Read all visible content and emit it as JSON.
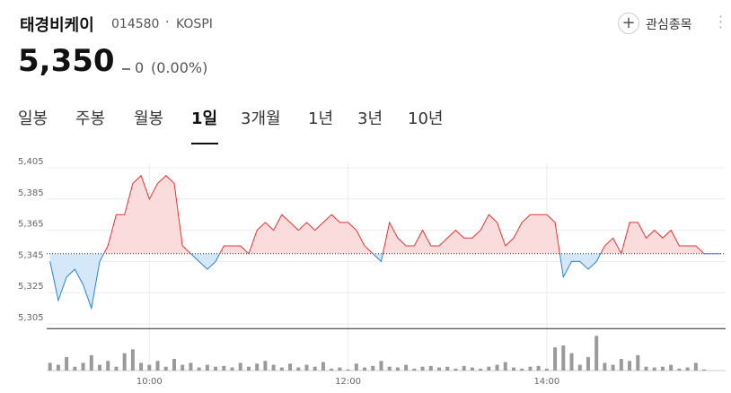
{
  "header": {
    "title": "태경비케이",
    "code": "014580",
    "market": "KOSPI",
    "watch_button": "관심종목",
    "price": "5,350",
    "change": "0",
    "change_pct": "(0.00%)"
  },
  "tabs": [
    "일봉",
    "주봉",
    "월봉",
    "1일",
    "3개월",
    "1년",
    "3년",
    "10년"
  ],
  "selected_tab": 3,
  "chart_data": {
    "type": "line",
    "x": [
      "09:00",
      "09:05",
      "09:10",
      "09:15",
      "09:20",
      "09:25",
      "09:30",
      "09:35",
      "09:40",
      "09:45",
      "09:50",
      "09:55",
      "10:00",
      "10:05",
      "10:10",
      "10:15",
      "10:20",
      "10:25",
      "10:30",
      "10:35",
      "10:40",
      "10:45",
      "10:50",
      "10:55",
      "11:00",
      "11:05",
      "11:10",
      "11:15",
      "11:20",
      "11:25",
      "11:30",
      "11:35",
      "11:40",
      "11:45",
      "11:50",
      "11:55",
      "12:00",
      "12:05",
      "12:10",
      "12:15",
      "12:20",
      "12:25",
      "12:30",
      "12:35",
      "12:40",
      "12:45",
      "12:50",
      "12:55",
      "13:00",
      "13:05",
      "13:10",
      "13:15",
      "13:20",
      "13:25",
      "13:30",
      "13:35",
      "13:40",
      "13:45",
      "13:50",
      "13:55",
      "14:00",
      "14:05",
      "14:10",
      "14:15",
      "14:20",
      "14:25",
      "14:30",
      "14:35",
      "14:40",
      "14:45",
      "14:50",
      "14:55",
      "15:00",
      "15:05",
      "15:10",
      "15:15",
      "15:20",
      "15:25",
      "15:30",
      "15:35",
      "15:40",
      "15:45"
    ],
    "values": [
      5345,
      5320,
      5335,
      5340,
      5330,
      5315,
      5345,
      5355,
      5375,
      5375,
      5395,
      5400,
      5385,
      5395,
      5400,
      5395,
      5355,
      5350,
      5345,
      5340,
      5345,
      5355,
      5355,
      5355,
      5350,
      5365,
      5370,
      5365,
      5375,
      5370,
      5365,
      5370,
      5365,
      5370,
      5375,
      5370,
      5370,
      5365,
      5355,
      5350,
      5345,
      5370,
      5360,
      5355,
      5355,
      5365,
      5355,
      5355,
      5360,
      5365,
      5360,
      5360,
      5365,
      5375,
      5370,
      5355,
      5360,
      5370,
      5375,
      5375,
      5375,
      5370,
      5335,
      5345,
      5345,
      5340,
      5345,
      5355,
      5360,
      5350,
      5370,
      5370,
      5360,
      5365,
      5360,
      5365,
      5355,
      5355,
      5355,
      5350,
      5350,
      5350
    ],
    "volumes": [
      20,
      15,
      35,
      10,
      20,
      40,
      15,
      25,
      10,
      45,
      55,
      20,
      15,
      25,
      10,
      30,
      15,
      20,
      8,
      15,
      10,
      12,
      8,
      20,
      10,
      18,
      25,
      15,
      8,
      18,
      8,
      15,
      10,
      22,
      5,
      8,
      3,
      18,
      8,
      12,
      25,
      10,
      8,
      15,
      5,
      10,
      12,
      8,
      10,
      5,
      12,
      8,
      5,
      10,
      15,
      22,
      8,
      5,
      10,
      12,
      5,
      60,
      65,
      45,
      15,
      35,
      90,
      20,
      15,
      30,
      25,
      40,
      10,
      8,
      10,
      15,
      5,
      8,
      20,
      3,
      0,
      0
    ],
    "volume_lim": [
      0,
      100
    ],
    "baseline": 5350,
    "xlim": [
      "08:58",
      "15:48"
    ],
    "xticks": [
      "10:00",
      "12:00",
      "14:00"
    ],
    "ylim": [
      5302,
      5408
    ],
    "yticks": [
      {
        "value": 5405,
        "label": "5,405"
      },
      {
        "value": 5385,
        "label": "5,385"
      },
      {
        "value": 5365,
        "label": "5,365"
      },
      {
        "value": 5345,
        "label": "5,345"
      },
      {
        "value": 5325,
        "label": "5,325"
      },
      {
        "value": 5305,
        "label": "5,305"
      }
    ],
    "up_color": "#e4342f",
    "down_color": "#2a84d6",
    "up_fill": "#fbdcdc",
    "down_fill": "#d5e8fa",
    "volume_color": "#9a9a9a",
    "grid": true
  }
}
